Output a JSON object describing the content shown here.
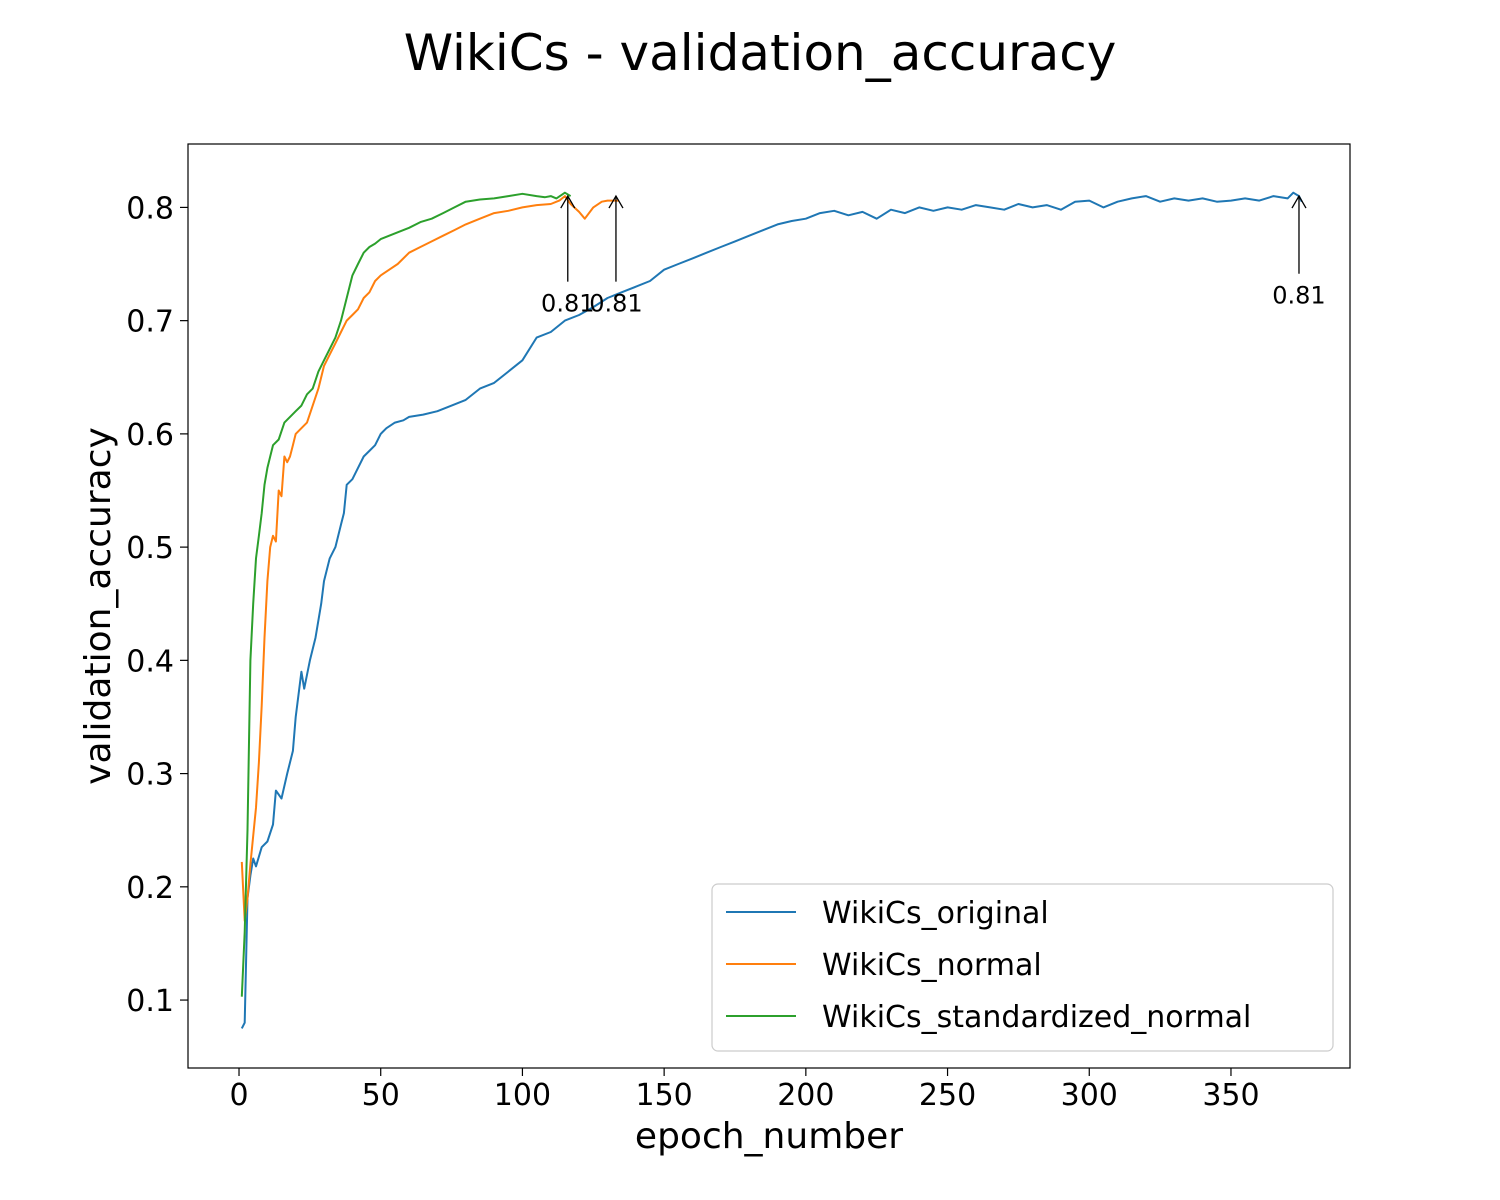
{
  "chart_data": {
    "type": "line",
    "title": "WikiCs - validation_accuracy",
    "xlabel": "epoch_number",
    "ylabel": "validation_accuracy",
    "xlim": [
      -18,
      392
    ],
    "ylim": [
      0.04,
      0.856
    ],
    "xticks": [
      0,
      50,
      100,
      150,
      200,
      250,
      300,
      350
    ],
    "yticks": [
      0.1,
      0.2,
      0.3,
      0.4,
      0.5,
      0.6,
      0.7,
      0.8
    ],
    "grid": false,
    "legend_position": "lower-right",
    "series": [
      {
        "name": "WikiCs_original",
        "color": "#1f77b4",
        "points": [
          [
            1,
            0.075
          ],
          [
            2,
            0.08
          ],
          [
            3,
            0.19
          ],
          [
            4,
            0.21
          ],
          [
            5,
            0.225
          ],
          [
            6,
            0.218
          ],
          [
            8,
            0.235
          ],
          [
            10,
            0.24
          ],
          [
            12,
            0.255
          ],
          [
            13,
            0.285
          ],
          [
            15,
            0.278
          ],
          [
            17,
            0.3
          ],
          [
            19,
            0.32
          ],
          [
            20,
            0.35
          ],
          [
            22,
            0.39
          ],
          [
            23,
            0.375
          ],
          [
            25,
            0.4
          ],
          [
            27,
            0.42
          ],
          [
            29,
            0.45
          ],
          [
            30,
            0.47
          ],
          [
            32,
            0.49
          ],
          [
            34,
            0.5
          ],
          [
            36,
            0.52
          ],
          [
            37,
            0.53
          ],
          [
            38,
            0.555
          ],
          [
            40,
            0.56
          ],
          [
            42,
            0.57
          ],
          [
            44,
            0.58
          ],
          [
            46,
            0.585
          ],
          [
            48,
            0.59
          ],
          [
            50,
            0.6
          ],
          [
            52,
            0.605
          ],
          [
            55,
            0.61
          ],
          [
            58,
            0.612
          ],
          [
            60,
            0.615
          ],
          [
            65,
            0.617
          ],
          [
            70,
            0.62
          ],
          [
            75,
            0.625
          ],
          [
            80,
            0.63
          ],
          [
            85,
            0.64
          ],
          [
            90,
            0.645
          ],
          [
            95,
            0.655
          ],
          [
            100,
            0.665
          ],
          [
            105,
            0.685
          ],
          [
            110,
            0.69
          ],
          [
            115,
            0.7
          ],
          [
            120,
            0.705
          ],
          [
            125,
            0.712
          ],
          [
            130,
            0.72
          ],
          [
            135,
            0.725
          ],
          [
            140,
            0.73
          ],
          [
            145,
            0.735
          ],
          [
            150,
            0.745
          ],
          [
            155,
            0.75
          ],
          [
            160,
            0.755
          ],
          [
            165,
            0.76
          ],
          [
            170,
            0.765
          ],
          [
            175,
            0.77
          ],
          [
            180,
            0.775
          ],
          [
            185,
            0.78
          ],
          [
            190,
            0.785
          ],
          [
            195,
            0.788
          ],
          [
            200,
            0.79
          ],
          [
            205,
            0.795
          ],
          [
            210,
            0.797
          ],
          [
            215,
            0.793
          ],
          [
            220,
            0.796
          ],
          [
            225,
            0.79
          ],
          [
            230,
            0.798
          ],
          [
            235,
            0.795
          ],
          [
            240,
            0.8
          ],
          [
            245,
            0.797
          ],
          [
            250,
            0.8
          ],
          [
            255,
            0.798
          ],
          [
            260,
            0.802
          ],
          [
            265,
            0.8
          ],
          [
            270,
            0.798
          ],
          [
            275,
            0.803
          ],
          [
            280,
            0.8
          ],
          [
            285,
            0.802
          ],
          [
            290,
            0.798
          ],
          [
            295,
            0.805
          ],
          [
            300,
            0.806
          ],
          [
            305,
            0.8
          ],
          [
            310,
            0.805
          ],
          [
            315,
            0.808
          ],
          [
            320,
            0.81
          ],
          [
            325,
            0.805
          ],
          [
            330,
            0.808
          ],
          [
            335,
            0.806
          ],
          [
            340,
            0.808
          ],
          [
            345,
            0.805
          ],
          [
            350,
            0.806
          ],
          [
            355,
            0.808
          ],
          [
            360,
            0.806
          ],
          [
            365,
            0.81
          ],
          [
            370,
            0.808
          ],
          [
            372,
            0.813
          ],
          [
            374,
            0.81
          ],
          [
            375,
            0.805
          ]
        ]
      },
      {
        "name": "WikiCs_normal",
        "color": "#ff7f0e",
        "points": [
          [
            1,
            0.222
          ],
          [
            2,
            0.17
          ],
          [
            3,
            0.19
          ],
          [
            4,
            0.22
          ],
          [
            5,
            0.245
          ],
          [
            6,
            0.27
          ],
          [
            7,
            0.31
          ],
          [
            8,
            0.36
          ],
          [
            9,
            0.42
          ],
          [
            10,
            0.47
          ],
          [
            11,
            0.5
          ],
          [
            12,
            0.51
          ],
          [
            13,
            0.505
          ],
          [
            14,
            0.55
          ],
          [
            15,
            0.545
          ],
          [
            16,
            0.58
          ],
          [
            17,
            0.575
          ],
          [
            18,
            0.58
          ],
          [
            19,
            0.59
          ],
          [
            20,
            0.6
          ],
          [
            22,
            0.605
          ],
          [
            24,
            0.61
          ],
          [
            26,
            0.625
          ],
          [
            28,
            0.64
          ],
          [
            30,
            0.66
          ],
          [
            32,
            0.67
          ],
          [
            34,
            0.68
          ],
          [
            36,
            0.69
          ],
          [
            38,
            0.7
          ],
          [
            40,
            0.705
          ],
          [
            42,
            0.71
          ],
          [
            44,
            0.72
          ],
          [
            46,
            0.725
          ],
          [
            48,
            0.735
          ],
          [
            50,
            0.74
          ],
          [
            53,
            0.745
          ],
          [
            56,
            0.75
          ],
          [
            60,
            0.76
          ],
          [
            64,
            0.765
          ],
          [
            68,
            0.77
          ],
          [
            72,
            0.775
          ],
          [
            76,
            0.78
          ],
          [
            80,
            0.785
          ],
          [
            85,
            0.79
          ],
          [
            90,
            0.795
          ],
          [
            95,
            0.797
          ],
          [
            100,
            0.8
          ],
          [
            105,
            0.802
          ],
          [
            110,
            0.803
          ],
          [
            113,
            0.806
          ],
          [
            115,
            0.81
          ],
          [
            117,
            0.803
          ],
          [
            120,
            0.796
          ],
          [
            122,
            0.79
          ],
          [
            125,
            0.8
          ],
          [
            128,
            0.805
          ],
          [
            130,
            0.806
          ],
          [
            132,
            0.806
          ],
          [
            134,
            0.806
          ]
        ]
      },
      {
        "name": "WikiCs_standardized_normal",
        "color": "#2ca02c",
        "points": [
          [
            1,
            0.103
          ],
          [
            2,
            0.16
          ],
          [
            3,
            0.25
          ],
          [
            4,
            0.4
          ],
          [
            5,
            0.45
          ],
          [
            6,
            0.49
          ],
          [
            7,
            0.51
          ],
          [
            8,
            0.53
          ],
          [
            9,
            0.555
          ],
          [
            10,
            0.57
          ],
          [
            11,
            0.58
          ],
          [
            12,
            0.59
          ],
          [
            14,
            0.595
          ],
          [
            16,
            0.61
          ],
          [
            18,
            0.615
          ],
          [
            20,
            0.62
          ],
          [
            22,
            0.625
          ],
          [
            24,
            0.635
          ],
          [
            26,
            0.64
          ],
          [
            28,
            0.655
          ],
          [
            30,
            0.665
          ],
          [
            32,
            0.675
          ],
          [
            34,
            0.685
          ],
          [
            36,
            0.7
          ],
          [
            38,
            0.72
          ],
          [
            40,
            0.74
          ],
          [
            42,
            0.75
          ],
          [
            44,
            0.76
          ],
          [
            46,
            0.765
          ],
          [
            48,
            0.768
          ],
          [
            50,
            0.772
          ],
          [
            53,
            0.775
          ],
          [
            56,
            0.778
          ],
          [
            60,
            0.782
          ],
          [
            64,
            0.787
          ],
          [
            68,
            0.79
          ],
          [
            72,
            0.795
          ],
          [
            76,
            0.8
          ],
          [
            80,
            0.805
          ],
          [
            85,
            0.807
          ],
          [
            90,
            0.808
          ],
          [
            95,
            0.81
          ],
          [
            100,
            0.812
          ],
          [
            105,
            0.81
          ],
          [
            108,
            0.809
          ],
          [
            110,
            0.81
          ],
          [
            112,
            0.808
          ],
          [
            115,
            0.813
          ],
          [
            117,
            0.81
          ]
        ]
      }
    ],
    "annotations": [
      {
        "text": "0.81",
        "x": 116,
        "y": 0.81,
        "text_y": 0.715,
        "series": "WikiCs_standardized_normal"
      },
      {
        "text": "0.81",
        "x": 133,
        "y": 0.81,
        "text_y": 0.715,
        "series": "WikiCs_normal"
      },
      {
        "text": "0.81",
        "x": 374,
        "y": 0.81,
        "text_y": 0.722,
        "series": "WikiCs_original"
      }
    ]
  }
}
